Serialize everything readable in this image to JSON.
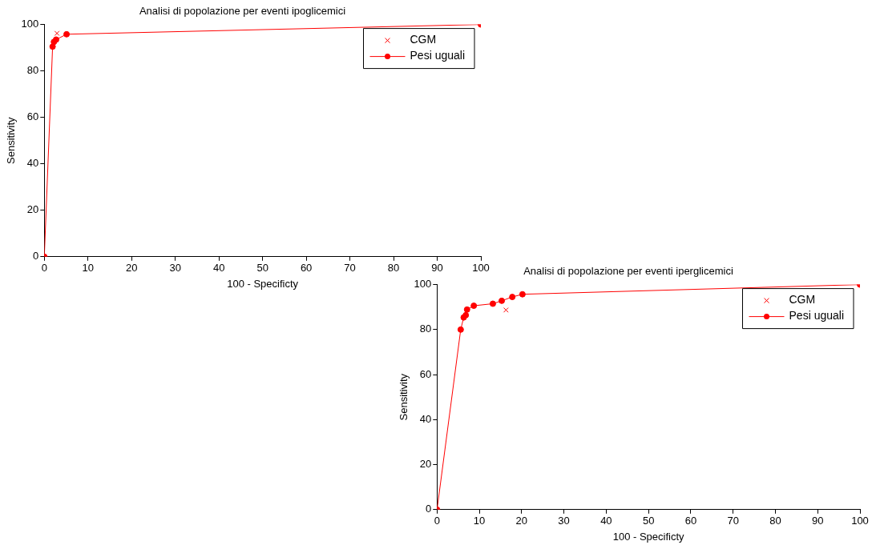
{
  "chart_data": [
    {
      "type": "line",
      "title": "Analisi di popolazione per eventi ipoglicemici",
      "xlabel": "100 - Specificty",
      "ylabel": "Sensitivity",
      "xlim": [
        0,
        100
      ],
      "ylim": [
        0,
        100
      ],
      "xticks": [
        0,
        10,
        20,
        30,
        40,
        50,
        60,
        70,
        80,
        90,
        100
      ],
      "yticks": [
        0,
        20,
        40,
        60,
        80,
        100
      ],
      "grid": false,
      "legend": "top right",
      "series": [
        {
          "name": "CGM",
          "type": "scatter",
          "marker": "cross",
          "color": "#ff0000",
          "x": [
            2.9
          ],
          "values": [
            96.2
          ]
        },
        {
          "name": "Pesi uguali",
          "type": "line",
          "marker": "circle",
          "line_style": "solid",
          "color": "#ff0000",
          "x": [
            0,
            1.9,
            2.2,
            2.7,
            5.1,
            100
          ],
          "values": [
            0,
            90.5,
            92.5,
            93.5,
            95.8,
            100
          ]
        }
      ]
    },
    {
      "type": "line",
      "title": "Analisi di popolazione per eventi iperglicemici",
      "xlabel": "100 - Specificty",
      "ylabel": "Sensitivity",
      "xlim": [
        0,
        100
      ],
      "ylim": [
        0,
        100
      ],
      "xticks": [
        0,
        10,
        20,
        30,
        40,
        50,
        60,
        70,
        80,
        90,
        100
      ],
      "yticks": [
        0,
        20,
        40,
        60,
        80,
        100
      ],
      "grid": false,
      "legend": "top right",
      "series": [
        {
          "name": "CGM",
          "type": "scatter",
          "marker": "cross",
          "color": "#ff0000",
          "x": [
            16.3
          ],
          "values": [
            88.7
          ]
        },
        {
          "name": "Pesi uguali",
          "type": "line",
          "marker": "circle",
          "line_style": "solid",
          "color": "#ff0000",
          "x": [
            0,
            5.6,
            6.3,
            6.8,
            7.1,
            8.7,
            13.2,
            15.3,
            17.8,
            20.2,
            100
          ],
          "values": [
            0,
            80.0,
            85.4,
            86.4,
            88.9,
            90.6,
            91.5,
            92.8,
            94.5,
            95.7,
            100
          ]
        }
      ]
    }
  ]
}
